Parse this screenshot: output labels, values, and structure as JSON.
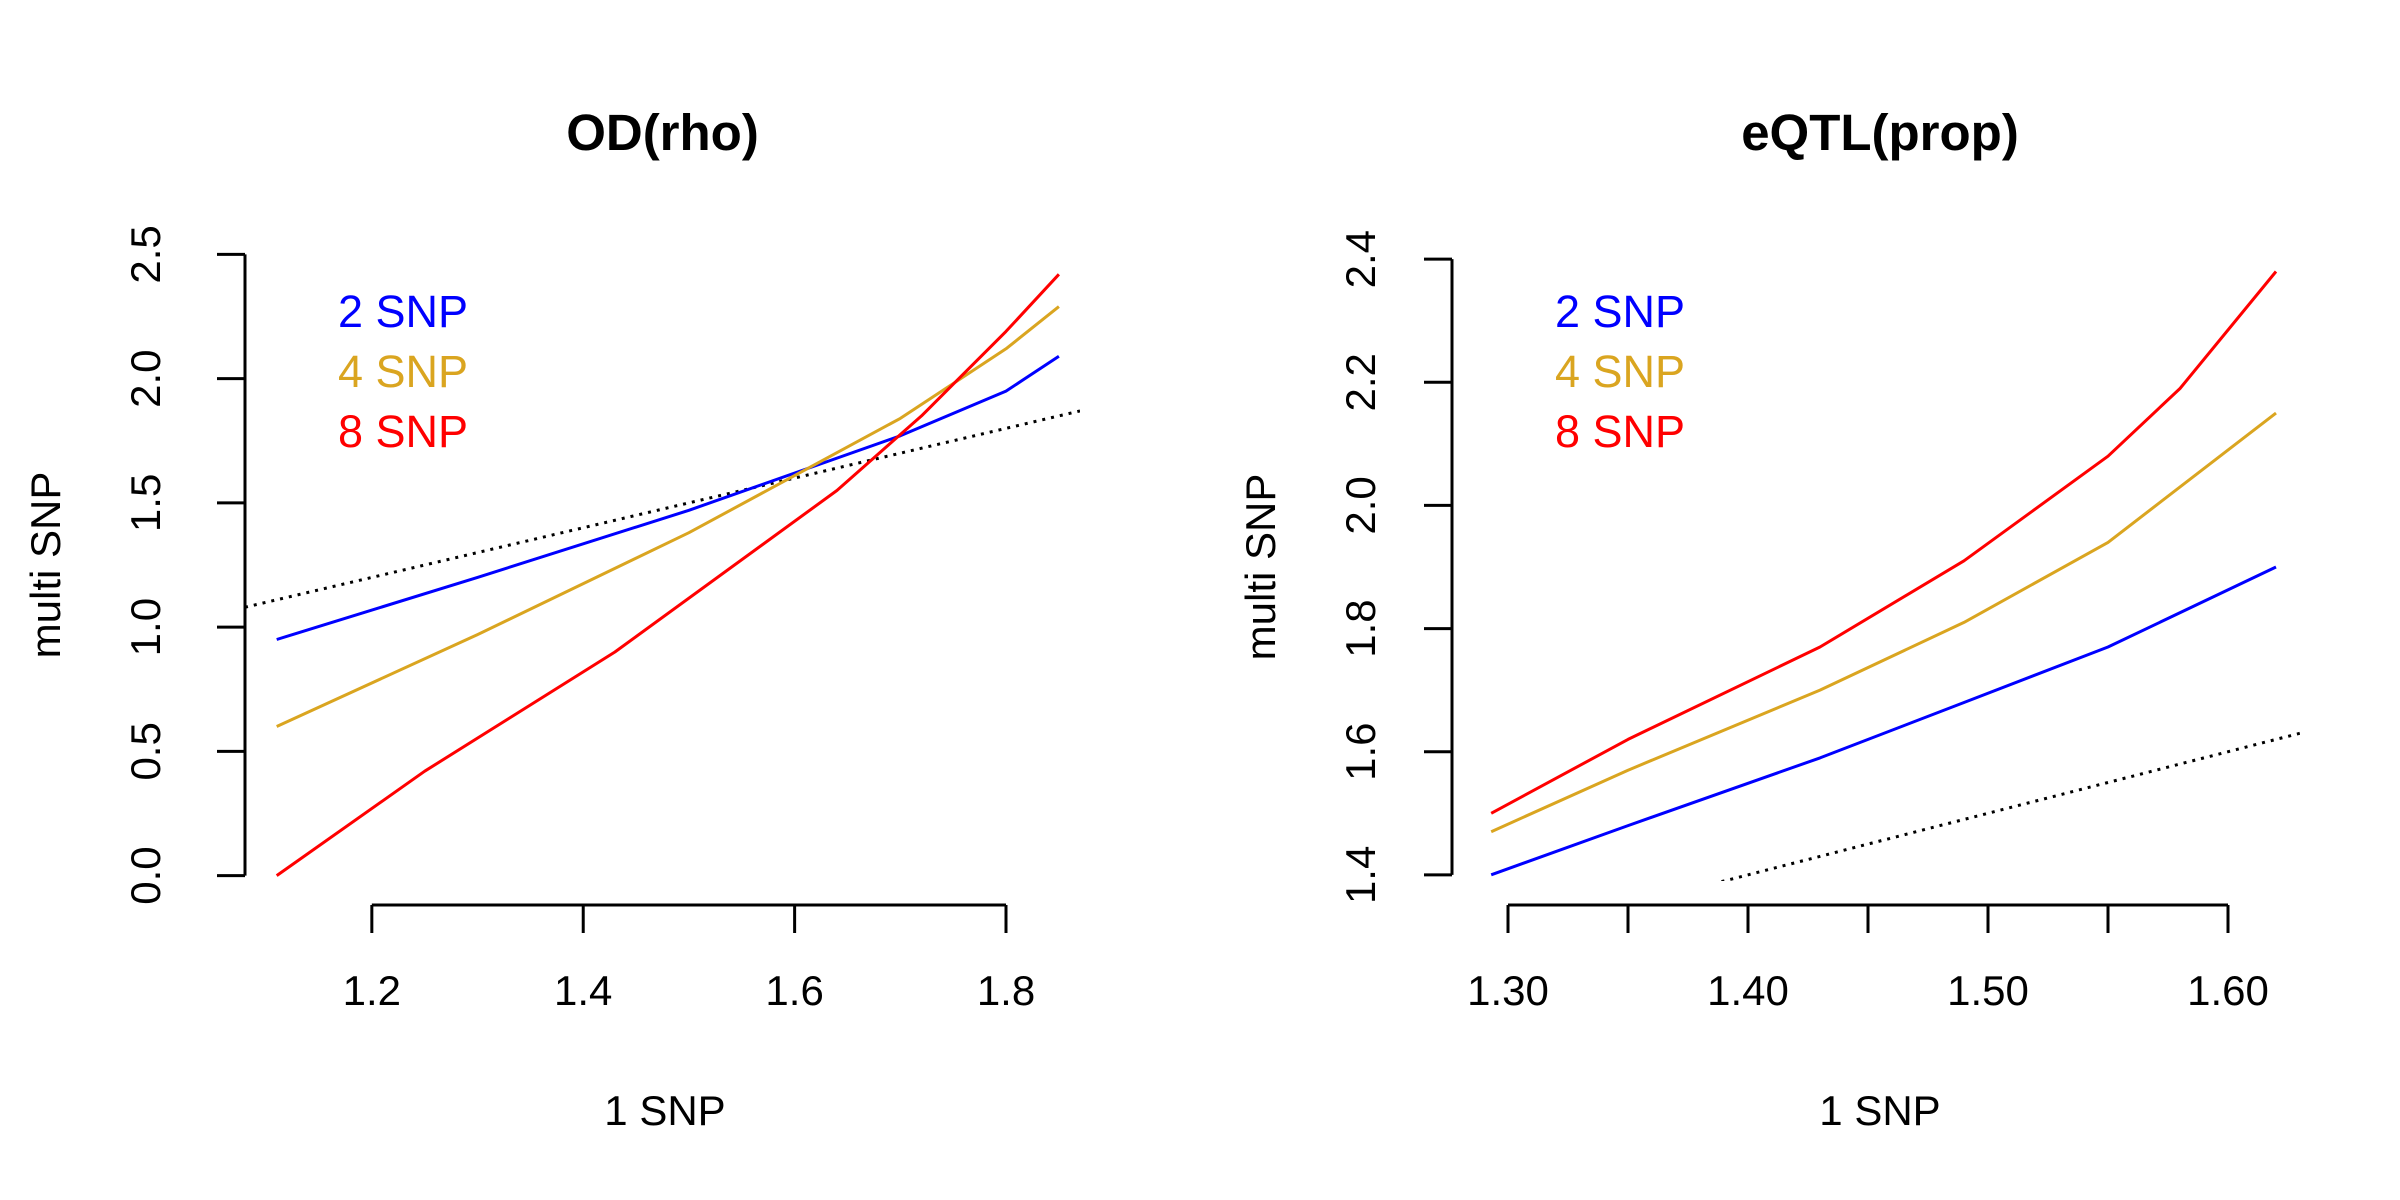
{
  "chart_data": [
    {
      "type": "line",
      "title": "OD(rho)",
      "xlabel": "1 SNP",
      "ylabel": "multi SNP",
      "xlim": [
        1.08,
        1.87
      ],
      "ylim": [
        -0.05,
        2.55
      ],
      "xticks": [
        1.2,
        1.4,
        1.6,
        1.8
      ],
      "xtick_labels": [
        "1.2",
        "1.4",
        "1.6",
        "1.8"
      ],
      "yticks": [
        0.0,
        0.5,
        1.0,
        1.5,
        2.0,
        2.5
      ],
      "ytick_labels": [
        "0.0",
        "0.5",
        "1.0",
        "1.5",
        "2.0",
        "2.5"
      ],
      "grid": false,
      "legend_position": "top-left",
      "reference_line": {
        "style": "dotted",
        "color": "#000000",
        "x": [
          1.08,
          1.87
        ],
        "y": [
          1.08,
          1.87
        ]
      },
      "series": [
        {
          "name": "2 SNP",
          "color": "#0000ff",
          "x": [
            1.11,
            1.3,
            1.5,
            1.7,
            1.8,
            1.85
          ],
          "y": [
            0.95,
            1.2,
            1.47,
            1.77,
            1.95,
            2.09
          ]
        },
        {
          "name": "4 SNP",
          "color": "#daa520",
          "x": [
            1.11,
            1.3,
            1.5,
            1.7,
            1.8,
            1.85
          ],
          "y": [
            0.6,
            0.97,
            1.38,
            1.84,
            2.12,
            2.29
          ]
        },
        {
          "name": "8 SNP",
          "color": "#ff0000",
          "x": [
            1.11,
            1.25,
            1.43,
            1.64,
            1.72,
            1.8,
            1.85
          ],
          "y": [
            0.0,
            0.42,
            0.9,
            1.55,
            1.85,
            2.19,
            2.42
          ]
        }
      ]
    },
    {
      "type": "line",
      "title": "eQTL(prop)",
      "xlabel": "1 SNP",
      "ylabel": "multi SNP",
      "xlim": [
        1.28,
        1.63
      ],
      "ylim": [
        1.39,
        2.41
      ],
      "xticks": [
        1.3,
        1.35,
        1.4,
        1.45,
        1.5,
        1.55,
        1.6
      ],
      "xtick_labels": [
        "1.30",
        "",
        "1.40",
        "",
        "1.50",
        "",
        "1.60"
      ],
      "yticks": [
        1.4,
        1.6,
        1.8,
        2.0,
        2.2,
        2.4
      ],
      "ytick_labels": [
        "1.4",
        "1.6",
        "1.8",
        "2.0",
        "2.2",
        "2.4"
      ],
      "grid": false,
      "legend_position": "top-left",
      "reference_line": {
        "style": "dotted",
        "color": "#000000",
        "x": [
          1.28,
          1.63
        ],
        "y": [
          1.28,
          1.63
        ]
      },
      "series": [
        {
          "name": "2 SNP",
          "color": "#0000ff",
          "x": [
            1.293,
            1.35,
            1.43,
            1.49,
            1.55,
            1.62
          ],
          "y": [
            1.4,
            1.48,
            1.59,
            1.68,
            1.77,
            1.9
          ]
        },
        {
          "name": "4 SNP",
          "color": "#daa520",
          "x": [
            1.293,
            1.35,
            1.43,
            1.49,
            1.55,
            1.62
          ],
          "y": [
            1.47,
            1.57,
            1.7,
            1.81,
            1.94,
            2.15
          ]
        },
        {
          "name": "8 SNP",
          "color": "#ff0000",
          "x": [
            1.293,
            1.35,
            1.43,
            1.49,
            1.55,
            1.58,
            1.62
          ],
          "y": [
            1.5,
            1.62,
            1.77,
            1.91,
            2.08,
            2.19,
            2.38
          ]
        }
      ]
    }
  ]
}
